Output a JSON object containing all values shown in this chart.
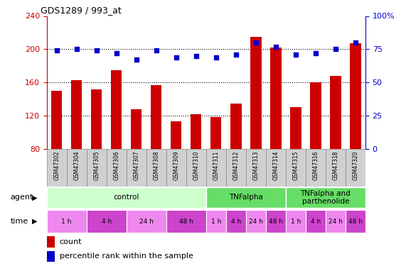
{
  "title": "GDS1289 / 993_at",
  "samples": [
    "GSM47302",
    "GSM47304",
    "GSM47305",
    "GSM47306",
    "GSM47307",
    "GSM47308",
    "GSM47309",
    "GSM47310",
    "GSM47311",
    "GSM47312",
    "GSM47313",
    "GSM47314",
    "GSM47315",
    "GSM47316",
    "GSM47318",
    "GSM47320"
  ],
  "counts": [
    150,
    163,
    152,
    175,
    128,
    157,
    113,
    122,
    118,
    135,
    215,
    202,
    130,
    160,
    168,
    207
  ],
  "percentiles": [
    74,
    75,
    74,
    72,
    67,
    74,
    69,
    70,
    69,
    71,
    80,
    77,
    71,
    72,
    75,
    80
  ],
  "bar_color": "#cc0000",
  "dot_color": "#0000cc",
  "ylim_left": [
    80,
    240
  ],
  "ylim_right": [
    0,
    100
  ],
  "yticks_left": [
    80,
    120,
    160,
    200,
    240
  ],
  "yticks_right": [
    0,
    25,
    50,
    75,
    100
  ],
  "right_tick_labels": [
    "0",
    "25",
    "50",
    "75",
    "100%"
  ],
  "agent_groups": [
    {
      "label": "control",
      "start": 0,
      "end": 8,
      "color": "#ccffcc"
    },
    {
      "label": "TNFalpha",
      "start": 8,
      "end": 12,
      "color": "#66dd66"
    },
    {
      "label": "TNFalpha and\nparthenolide",
      "start": 12,
      "end": 16,
      "color": "#66dd66"
    }
  ],
  "time_groups": [
    {
      "label": "1 h",
      "start": 0,
      "end": 2,
      "color": "#ee88ee"
    },
    {
      "label": "4 h",
      "start": 2,
      "end": 4,
      "color": "#cc44cc"
    },
    {
      "label": "24 h",
      "start": 4,
      "end": 6,
      "color": "#ee88ee"
    },
    {
      "label": "48 h",
      "start": 6,
      "end": 8,
      "color": "#cc44cc"
    },
    {
      "label": "1 h",
      "start": 8,
      "end": 9,
      "color": "#ee88ee"
    },
    {
      "label": "4 h",
      "start": 9,
      "end": 10,
      "color": "#cc44cc"
    },
    {
      "label": "24 h",
      "start": 10,
      "end": 11,
      "color": "#ee88ee"
    },
    {
      "label": "48 h",
      "start": 11,
      "end": 12,
      "color": "#cc44cc"
    },
    {
      "label": "1 h",
      "start": 12,
      "end": 13,
      "color": "#ee88ee"
    },
    {
      "label": "4 h",
      "start": 13,
      "end": 14,
      "color": "#cc44cc"
    },
    {
      "label": "24 h",
      "start": 14,
      "end": 15,
      "color": "#ee88ee"
    },
    {
      "label": "48 h",
      "start": 15,
      "end": 16,
      "color": "#cc44cc"
    }
  ],
  "left_axis_color": "#cc0000",
  "right_axis_color": "#0000cc",
  "agent_label": "agent",
  "time_label": "time",
  "legend_count_label": "count",
  "legend_pct_label": "percentile rank within the sample",
  "sample_box_color": "#d0d0d0",
  "sample_box_edge": "#888888"
}
